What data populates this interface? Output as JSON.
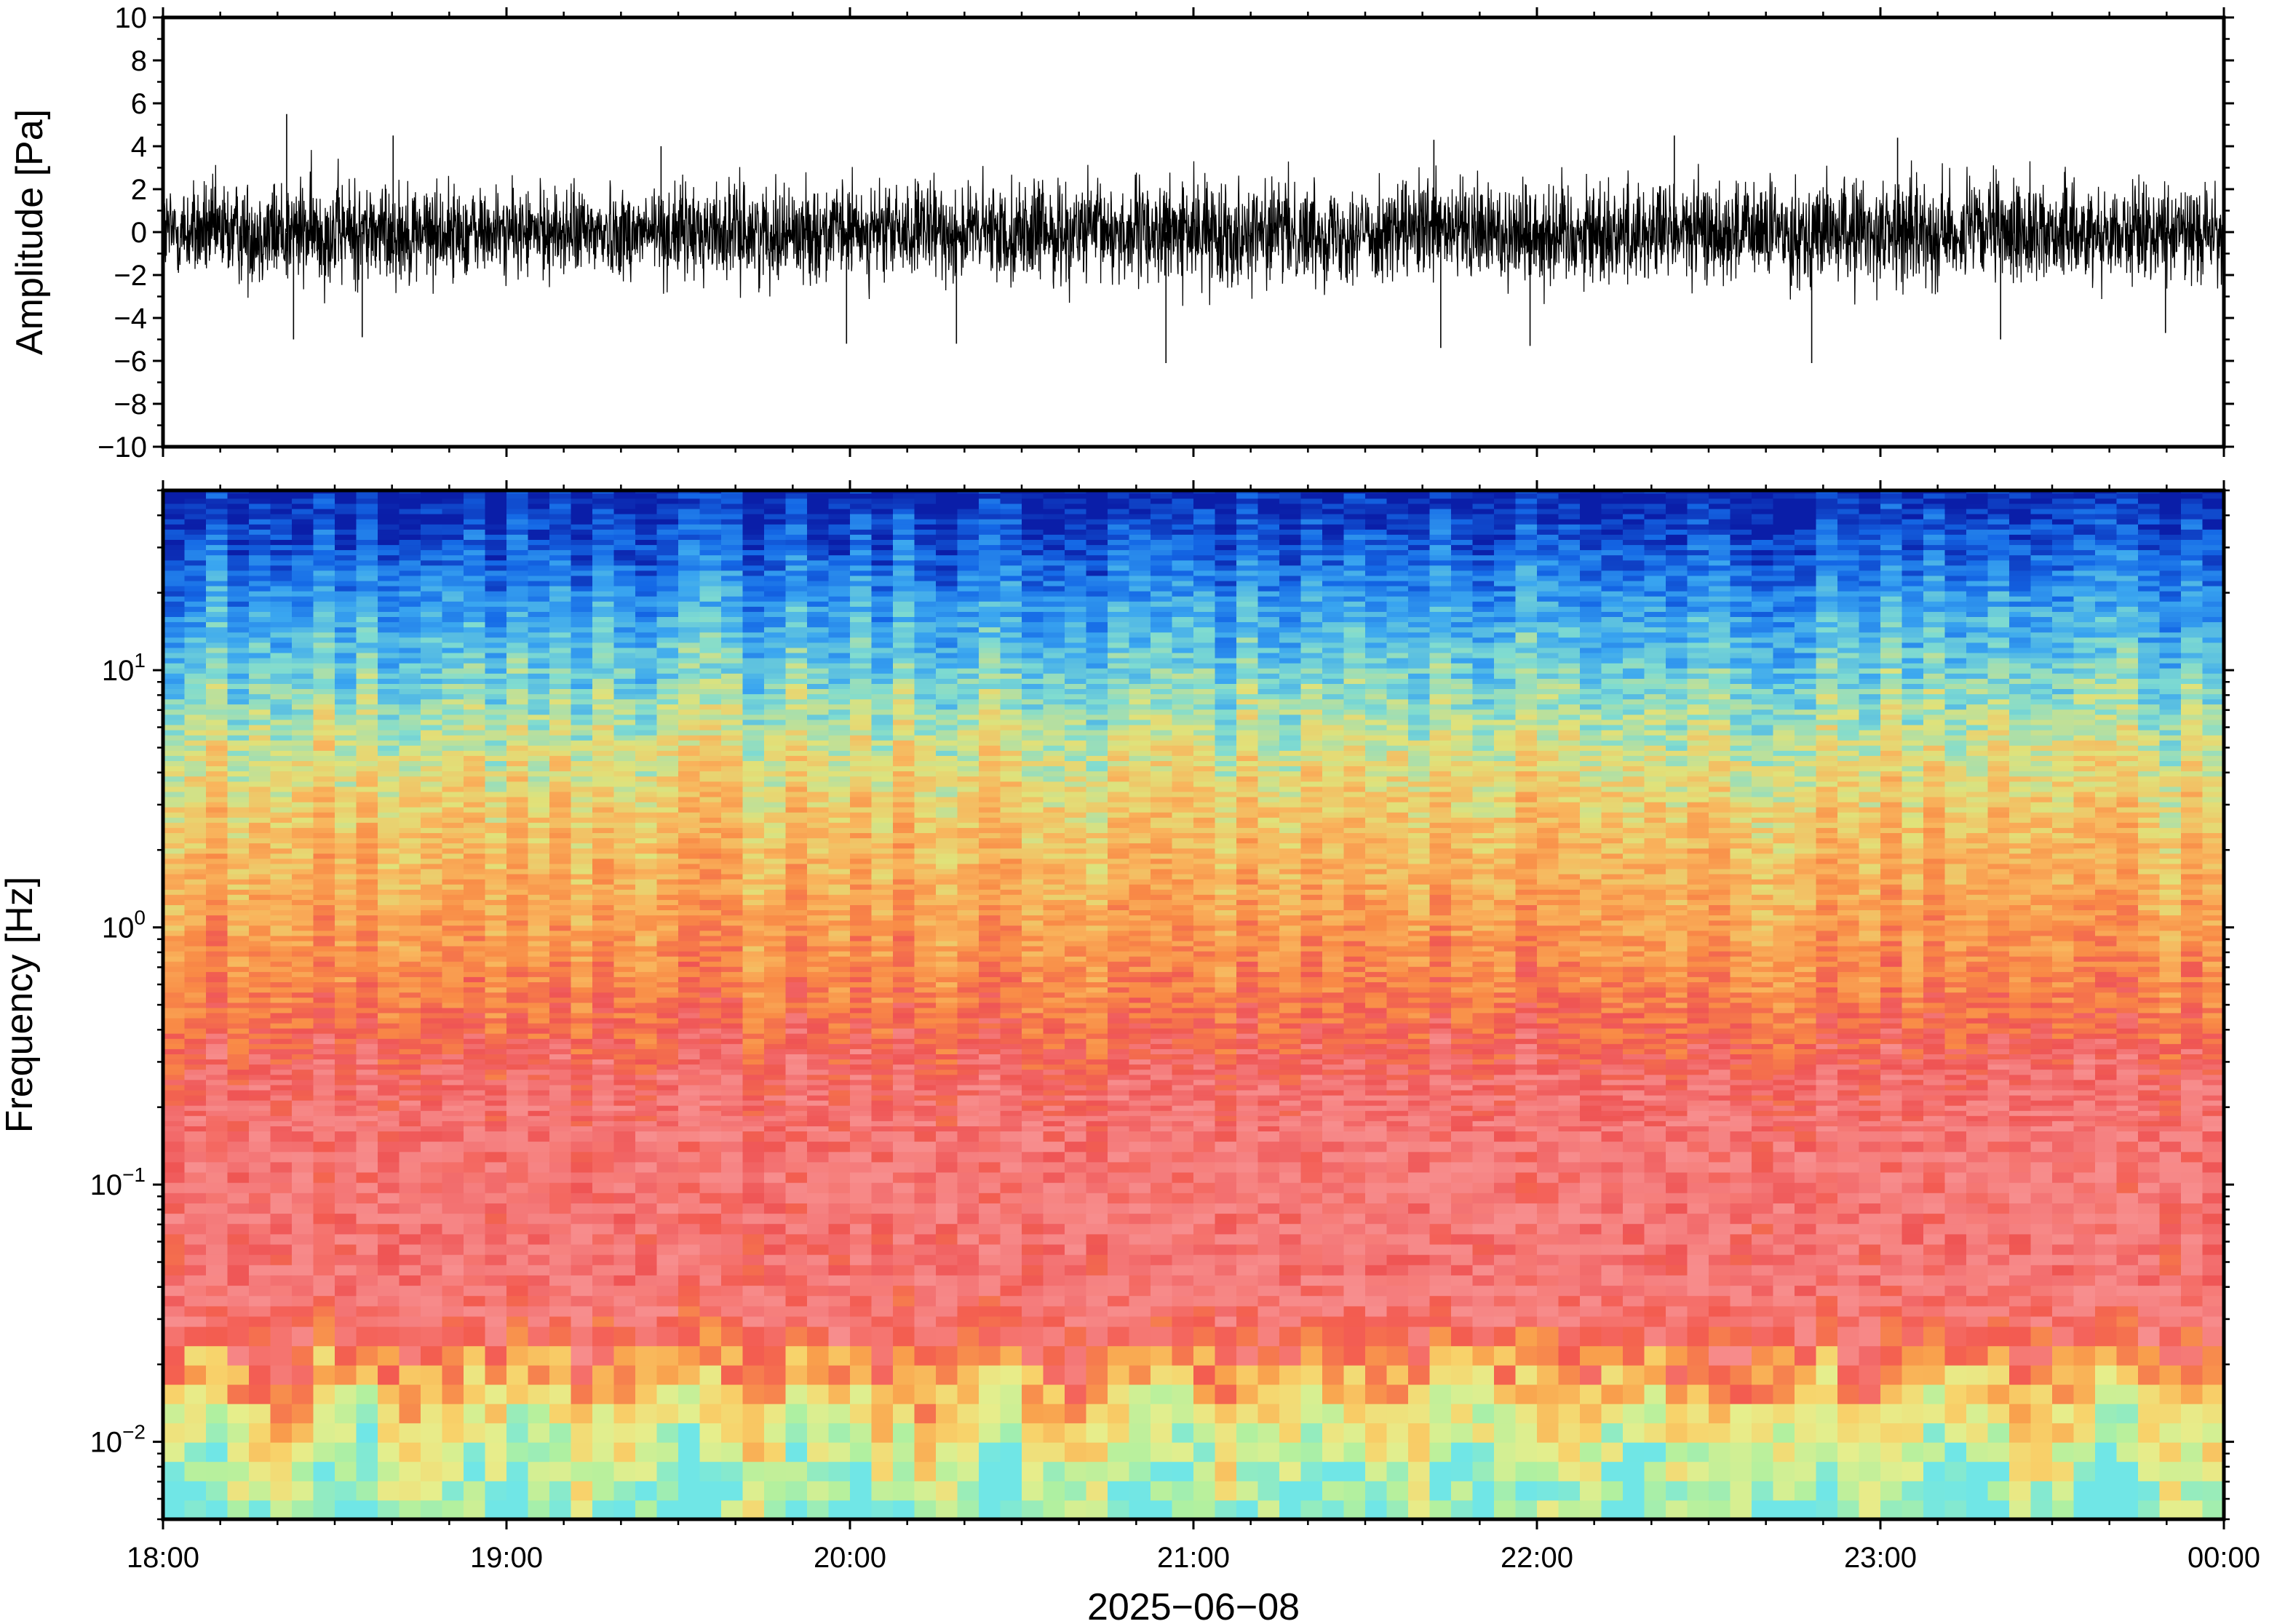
{
  "chart_data": [
    {
      "type": "line",
      "panel": "waveform",
      "ylabel": "Amplitude [Pa]",
      "ylim": [
        -10,
        10
      ],
      "yticks": [
        -10,
        -8,
        -6,
        -4,
        -2,
        0,
        2,
        4,
        6,
        8,
        10
      ],
      "ytick_labels": [
        "−10",
        "−8",
        "−6",
        "−4",
        "−2",
        "0",
        "2",
        "4",
        "6",
        "8",
        "10"
      ],
      "xlim": [
        "18:00",
        "00:00"
      ],
      "grid": false,
      "series": [
        {
          "color": "#000000",
          "envelope_hours": [
            18.0,
            18.5,
            19.0,
            19.5,
            20.0,
            20.5,
            21.0,
            21.5,
            22.0,
            22.5,
            23.0,
            23.5,
            24.0
          ],
          "typical_peak_pa": [
            2.6,
            3.0,
            2.3,
            2.6,
            2.5,
            2.7,
            2.8,
            2.6,
            3.0,
            2.7,
            2.9,
            2.7,
            2.4
          ],
          "spikes": [
            {
              "t": 18.36,
              "y": 5.5
            },
            {
              "t": 18.38,
              "y": -5.0
            },
            {
              "t": 18.67,
              "y": 4.5
            },
            {
              "t": 18.58,
              "y": -4.9
            },
            {
              "t": 19.45,
              "y": 4.0
            },
            {
              "t": 19.99,
              "y": -5.2
            },
            {
              "t": 20.31,
              "y": -5.2
            },
            {
              "t": 20.92,
              "y": -6.1
            },
            {
              "t": 21.7,
              "y": 4.3
            },
            {
              "t": 21.72,
              "y": -5.4
            },
            {
              "t": 21.98,
              "y": -5.3
            },
            {
              "t": 22.4,
              "y": 4.5
            },
            {
              "t": 22.8,
              "y": -6.1
            },
            {
              "t": 23.05,
              "y": 4.4
            },
            {
              "t": 23.35,
              "y": -5.0
            },
            {
              "t": 23.83,
              "y": -4.7
            }
          ]
        }
      ]
    },
    {
      "type": "heatmap",
      "panel": "spectrogram",
      "xlabel": "2025−06−08",
      "ylabel": "Frequency [Hz]",
      "x_tick_labels": [
        "18:00",
        "19:00",
        "20:00",
        "21:00",
        "22:00",
        "23:00",
        "00:00"
      ],
      "x_tick_hours": [
        18,
        19,
        20,
        21,
        22,
        23,
        24
      ],
      "yscale": "log",
      "ylim": [
        0.005,
        50
      ],
      "y_tick_values": [
        0.01,
        0.1,
        1,
        10
      ],
      "y_tick_labels": [
        {
          "base": "10",
          "exp": "−2"
        },
        {
          "base": "10",
          "exp": "−1"
        },
        {
          "base": "10",
          "exp": "0"
        },
        {
          "base": "10",
          "exp": "1"
        }
      ],
      "grid": false,
      "colormap": [
        "#70e6e6",
        "#b0f0a0",
        "#e6ee8c",
        "#f8d26a",
        "#f9a04c",
        "#f35a50",
        "#f78e8e",
        "#ef5454",
        "#f98a46",
        "#f9b45c",
        "#e0e27a",
        "#80dcd0",
        "#3aa6f0",
        "#1468e6",
        "#0a1ea8"
      ],
      "color_by_log10_frequency": [
        {
          "log10_f": -2.3,
          "level": 0.02
        },
        {
          "log10_f": -2.0,
          "level": 0.12
        },
        {
          "log10_f": -1.75,
          "level": 0.26
        },
        {
          "log10_f": -1.6,
          "level": 0.36
        },
        {
          "log10_f": -1.3,
          "level": 0.46
        },
        {
          "log10_f": -1.0,
          "level": 0.42
        },
        {
          "log10_f": -0.6,
          "level": 0.47
        },
        {
          "log10_f": -0.3,
          "level": 0.55
        },
        {
          "log10_f": 0.0,
          "level": 0.6
        },
        {
          "log10_f": 0.4,
          "level": 0.66
        },
        {
          "log10_f": 0.7,
          "level": 0.72
        },
        {
          "log10_f": 1.0,
          "level": 0.8
        },
        {
          "log10_f": 1.3,
          "level": 0.88
        },
        {
          "log10_f": 1.7,
          "level": 1.0
        }
      ]
    }
  ]
}
